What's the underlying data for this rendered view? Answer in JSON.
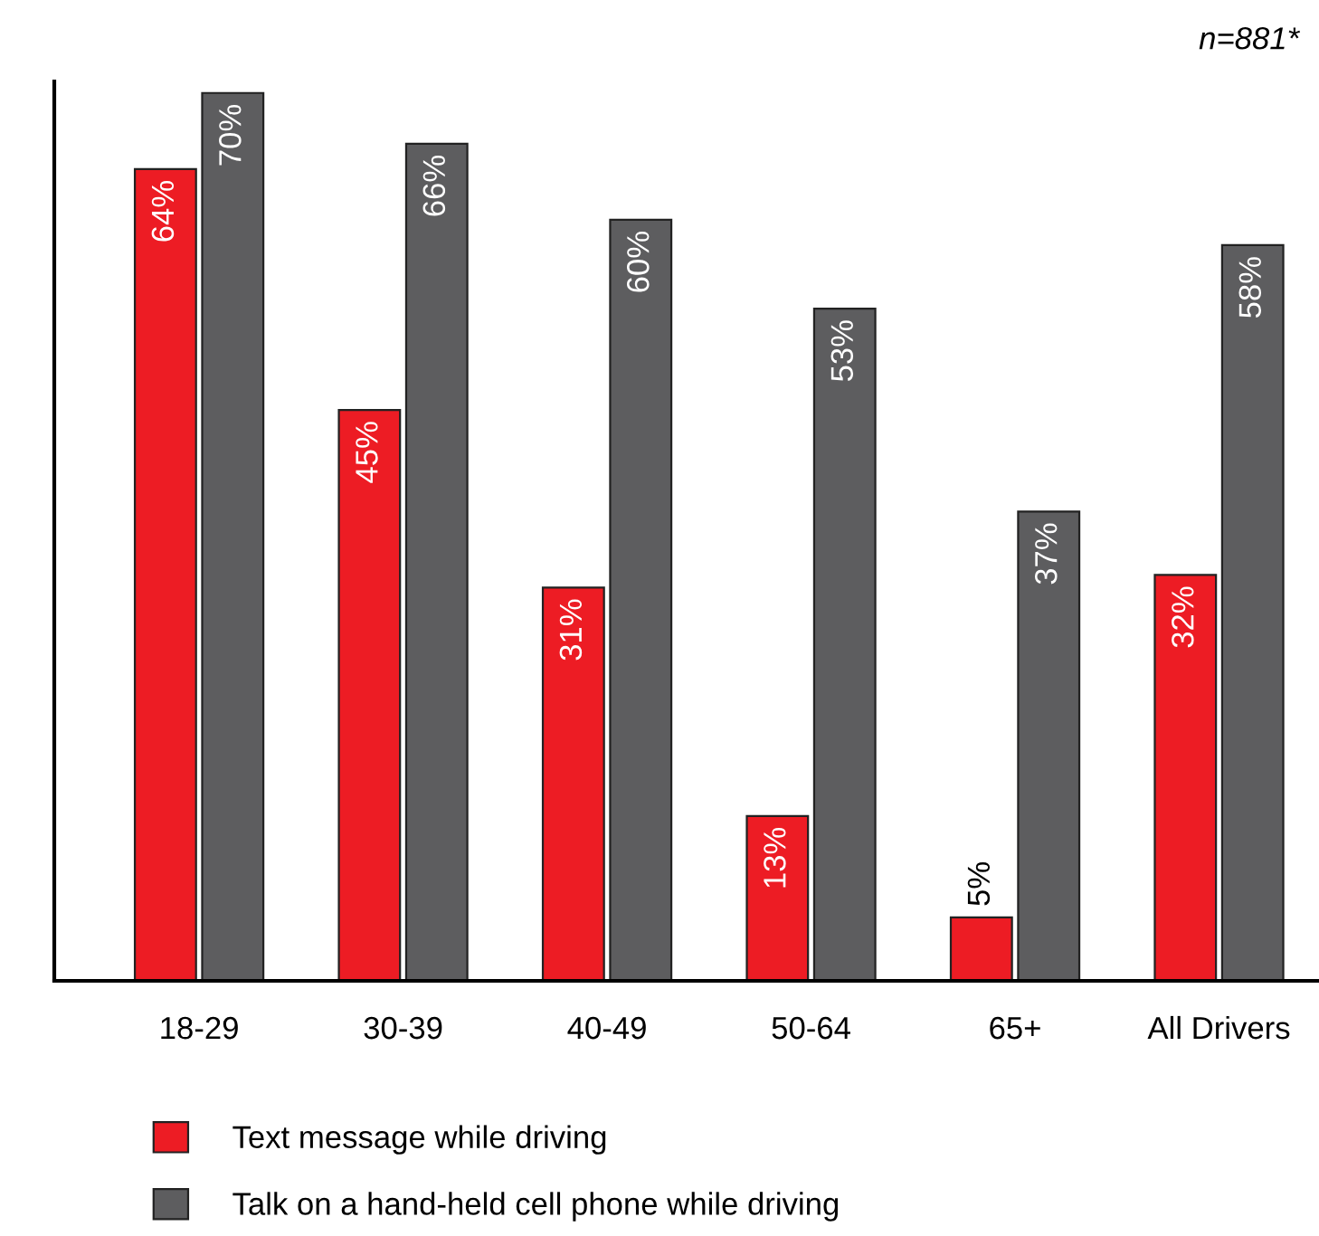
{
  "chart_data": {
    "type": "bar",
    "categories": [
      "18-29",
      "30-39",
      "40-49",
      "50-64",
      "65+",
      "All Drivers"
    ],
    "series": [
      {
        "name": "Text message while driving",
        "color": "#ed1c24",
        "values": [
          64,
          45,
          31,
          13,
          5,
          32
        ],
        "value_labels": [
          "64%",
          "45%",
          "31%",
          "13%",
          "5%",
          "32%"
        ]
      },
      {
        "name": "Talk on a hand-held cell phone while driving",
        "color": "#5d5d5f",
        "values": [
          70,
          66,
          60,
          53,
          37,
          58
        ],
        "value_labels": [
          "70%",
          "66%",
          "60%",
          "53%",
          "37%",
          "58%"
        ]
      }
    ],
    "grid": false,
    "legend": "bottom",
    "tick_labels": "x",
    "annotations": [
      "n=881*"
    ]
  }
}
